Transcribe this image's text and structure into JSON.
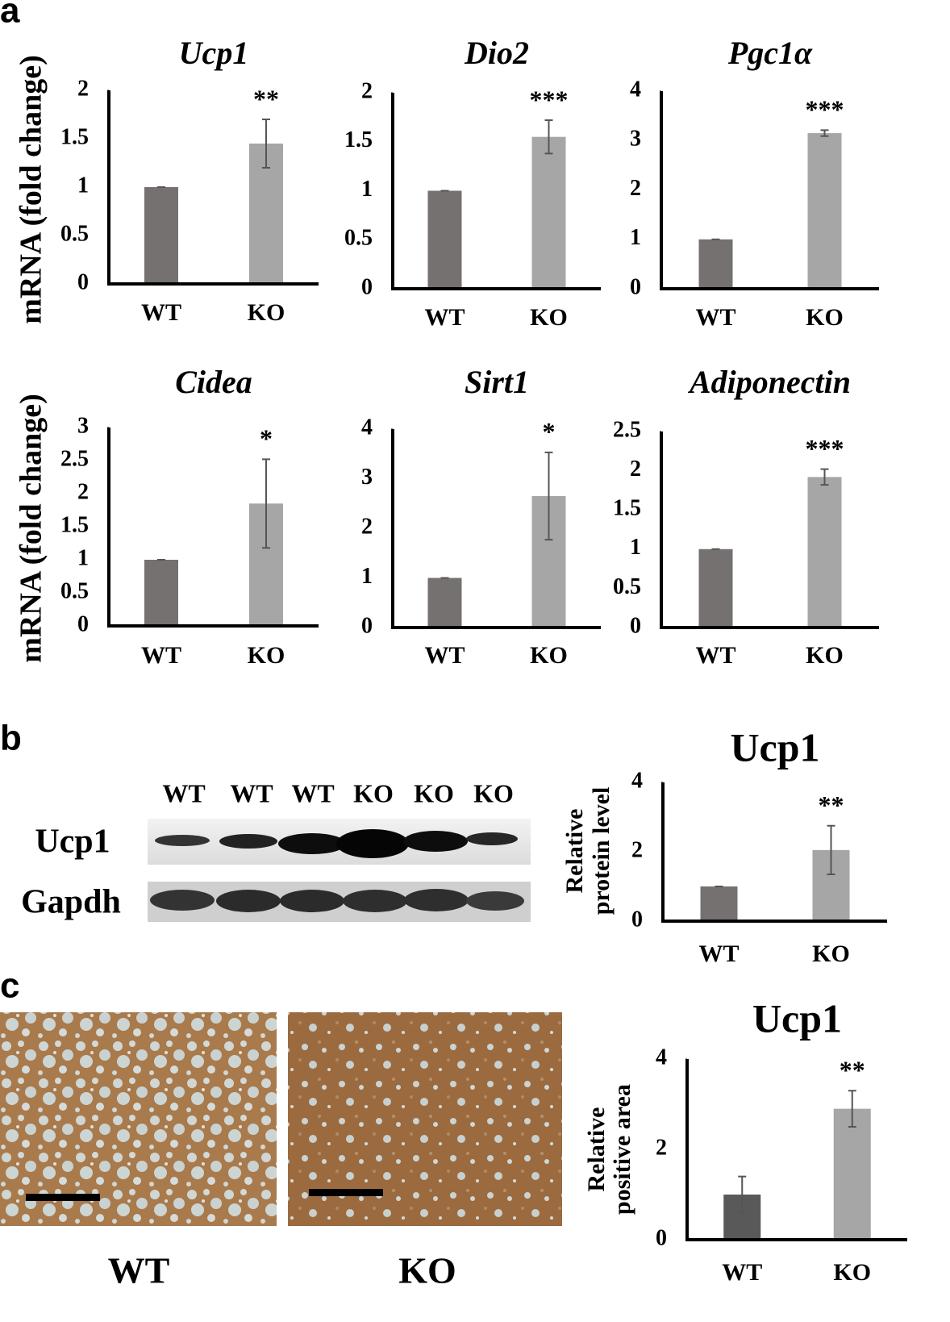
{
  "panel_labels": [
    "a",
    "b",
    "c"
  ],
  "chart_data": [
    {
      "type": "bar",
      "title": "Ucp1",
      "ylabel": "mRNA (fold change)",
      "categories": [
        "WT",
        "KO"
      ],
      "values": [
        1,
        1.45
      ],
      "errors": [
        0,
        0.25
      ],
      "significance": "**",
      "colors": [
        "#767171",
        "#a6a6a6"
      ],
      "ylim": [
        0,
        2
      ],
      "yticks": [
        0,
        0.5,
        1,
        1.5,
        2
      ]
    },
    {
      "type": "bar",
      "title": "Dio2",
      "categories": [
        "WT",
        "KO"
      ],
      "values": [
        1,
        1.55
      ],
      "errors": [
        0,
        0.17
      ],
      "significance": "***",
      "colors": [
        "#767171",
        "#a6a6a6"
      ],
      "ylim": [
        0,
        2
      ],
      "yticks": [
        0,
        0.5,
        1,
        1.5,
        2
      ]
    },
    {
      "type": "bar",
      "title": "Pgc1α",
      "categories": [
        "WT",
        "KO"
      ],
      "values": [
        1,
        3.15
      ],
      "errors": [
        0,
        0.06
      ],
      "significance": "***",
      "colors": [
        "#767171",
        "#a6a6a6"
      ],
      "ylim": [
        0,
        4
      ],
      "yticks": [
        0,
        1,
        2,
        3,
        4
      ]
    },
    {
      "type": "bar",
      "title": "Cidea",
      "ylabel": "mRNA (fold change)",
      "categories": [
        "WT",
        "KO"
      ],
      "values": [
        1,
        1.85
      ],
      "errors": [
        0,
        0.67
      ],
      "significance": "*",
      "colors": [
        "#767171",
        "#a6a6a6"
      ],
      "ylim": [
        0,
        3
      ],
      "yticks": [
        0,
        0.5,
        1,
        1.5,
        2,
        2.5,
        3
      ]
    },
    {
      "type": "bar",
      "title": "Sirt1",
      "categories": [
        "WT",
        "KO"
      ],
      "values": [
        1,
        2.65
      ],
      "errors": [
        0,
        0.88
      ],
      "significance": "*",
      "colors": [
        "#767171",
        "#a6a6a6"
      ],
      "ylim": [
        0,
        4
      ],
      "yticks": [
        0,
        1,
        2,
        3,
        4
      ]
    },
    {
      "type": "bar",
      "title": "Adiponectin",
      "categories": [
        "WT",
        "KO"
      ],
      "values": [
        1,
        1.92
      ],
      "errors": [
        0,
        0.1
      ],
      "significance": "***",
      "colors": [
        "#767171",
        "#a6a6a6"
      ],
      "ylim": [
        0,
        2.5
      ],
      "yticks": [
        0,
        0.5,
        1,
        1.5,
        2,
        2.5
      ]
    },
    {
      "type": "bar",
      "title": "Ucp1",
      "ylabel": [
        "Relative",
        "protein level"
      ],
      "categories": [
        "WT",
        "KO"
      ],
      "values": [
        1,
        2.05
      ],
      "errors": [
        0,
        0.7
      ],
      "significance": "**",
      "colors": [
        "#767171",
        "#a6a6a6"
      ],
      "ylim": [
        0,
        4
      ],
      "yticks": [
        0,
        2,
        4
      ]
    },
    {
      "type": "bar",
      "title": "Ucp1",
      "ylabel": [
        "Relative",
        "positive area"
      ],
      "categories": [
        "WT",
        "KO"
      ],
      "values": [
        1,
        2.9
      ],
      "errors": [
        0.4,
        0.4
      ],
      "significance": "**",
      "colors": [
        "#595959",
        "#a6a6a6"
      ],
      "ylim": [
        0,
        4
      ],
      "yticks": [
        0,
        2,
        4
      ]
    }
  ],
  "blot": {
    "lanes": [
      "WT",
      "WT",
      "WT",
      "KO",
      "KO",
      "KO"
    ],
    "rows": [
      "Ucp1",
      "Gapdh"
    ]
  },
  "histology": {
    "labels": [
      "WT",
      "KO"
    ]
  }
}
